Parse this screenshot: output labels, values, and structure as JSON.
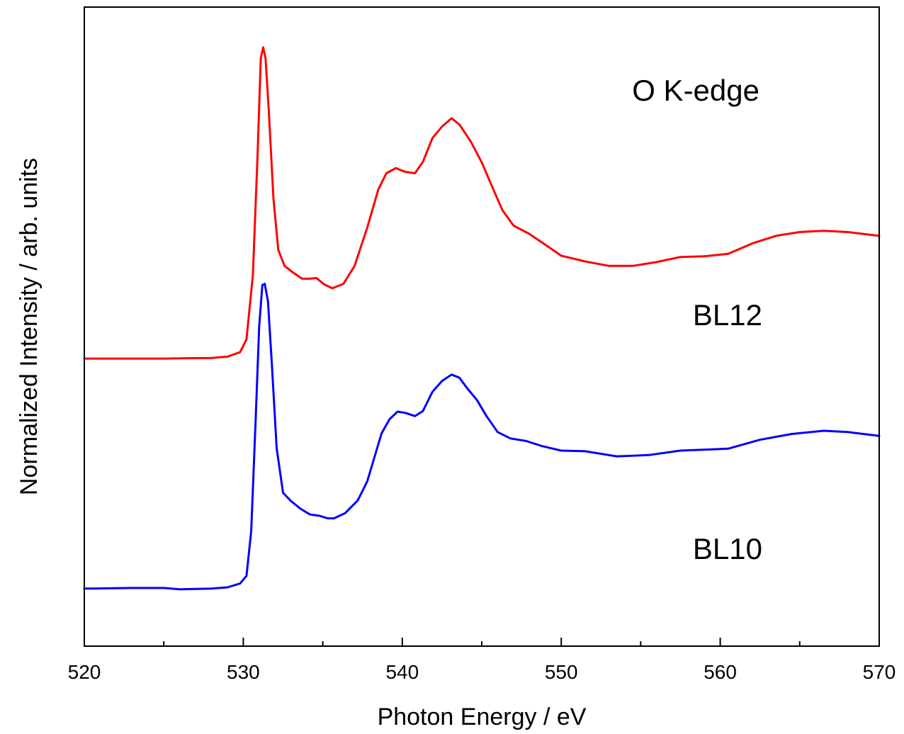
{
  "chart_data": {
    "type": "line",
    "title": "",
    "xlabel": "Photon Energy / eV",
    "ylabel": "Normalized Intensity / arb. units",
    "xlim": [
      520,
      570
    ],
    "ylim": [
      0,
      1
    ],
    "x_ticks": [
      520,
      530,
      540,
      550,
      560,
      570
    ],
    "x_tick_labels": [
      "520",
      "530",
      "540",
      "550",
      "560",
      "570"
    ],
    "y_ticks_shown": false,
    "grid": false,
    "legend": "none",
    "annotations": [
      "O K-edge",
      "BL12",
      "BL10"
    ],
    "series": [
      {
        "name": "BL12",
        "color": "#ff0000",
        "points": [
          [
            520,
            0.45
          ],
          [
            525,
            0.45
          ],
          [
            528,
            0.451
          ],
          [
            529,
            0.453
          ],
          [
            529.8,
            0.46
          ],
          [
            530.2,
            0.48
          ],
          [
            530.6,
            0.58
          ],
          [
            530.9,
            0.77
          ],
          [
            531.1,
            0.92
          ],
          [
            531.25,
            0.937
          ],
          [
            531.4,
            0.92
          ],
          [
            531.6,
            0.84
          ],
          [
            531.9,
            0.7
          ],
          [
            532.2,
            0.62
          ],
          [
            532.6,
            0.595
          ],
          [
            533.1,
            0.585
          ],
          [
            533.7,
            0.575
          ],
          [
            534.2,
            0.575
          ],
          [
            534.6,
            0.576
          ],
          [
            535.1,
            0.566
          ],
          [
            535.6,
            0.56
          ],
          [
            536.3,
            0.567
          ],
          [
            537.0,
            0.595
          ],
          [
            537.8,
            0.655
          ],
          [
            538.5,
            0.715
          ],
          [
            539.0,
            0.74
          ],
          [
            539.6,
            0.748
          ],
          [
            540.2,
            0.742
          ],
          [
            540.8,
            0.74
          ],
          [
            541.3,
            0.758
          ],
          [
            541.9,
            0.795
          ],
          [
            542.5,
            0.813
          ],
          [
            543.1,
            0.826
          ],
          [
            543.6,
            0.816
          ],
          [
            544.3,
            0.79
          ],
          [
            545.0,
            0.757
          ],
          [
            545.6,
            0.722
          ],
          [
            546.3,
            0.682
          ],
          [
            547.0,
            0.658
          ],
          [
            548.0,
            0.645
          ],
          [
            549.0,
            0.628
          ],
          [
            550.0,
            0.611
          ],
          [
            551.5,
            0.602
          ],
          [
            553.0,
            0.595
          ],
          [
            554.5,
            0.595
          ],
          [
            556.0,
            0.601
          ],
          [
            557.5,
            0.609
          ],
          [
            559.0,
            0.61
          ],
          [
            560.5,
            0.614
          ],
          [
            562.0,
            0.63
          ],
          [
            563.5,
            0.642
          ],
          [
            565.0,
            0.648
          ],
          [
            566.5,
            0.65
          ],
          [
            568.0,
            0.648
          ],
          [
            570,
            0.642
          ]
        ]
      },
      {
        "name": "BL10",
        "color": "#0000ff",
        "points": [
          [
            520,
            0.09
          ],
          [
            523,
            0.091
          ],
          [
            525,
            0.091
          ],
          [
            526,
            0.089
          ],
          [
            528,
            0.09
          ],
          [
            529,
            0.092
          ],
          [
            529.8,
            0.098
          ],
          [
            530.2,
            0.11
          ],
          [
            530.5,
            0.18
          ],
          [
            530.8,
            0.37
          ],
          [
            531.0,
            0.5
          ],
          [
            531.2,
            0.565
          ],
          [
            531.35,
            0.567
          ],
          [
            531.55,
            0.54
          ],
          [
            531.8,
            0.44
          ],
          [
            532.1,
            0.31
          ],
          [
            532.5,
            0.24
          ],
          [
            533.0,
            0.227
          ],
          [
            533.6,
            0.215
          ],
          [
            534.2,
            0.206
          ],
          [
            534.8,
            0.204
          ],
          [
            535.3,
            0.2
          ],
          [
            535.7,
            0.2
          ],
          [
            536.4,
            0.208
          ],
          [
            537.2,
            0.228
          ],
          [
            537.8,
            0.258
          ],
          [
            538.3,
            0.3
          ],
          [
            538.7,
            0.333
          ],
          [
            539.2,
            0.355
          ],
          [
            539.7,
            0.367
          ],
          [
            540.2,
            0.365
          ],
          [
            540.8,
            0.36
          ],
          [
            541.3,
            0.368
          ],
          [
            541.9,
            0.398
          ],
          [
            542.5,
            0.415
          ],
          [
            543.1,
            0.425
          ],
          [
            543.6,
            0.42
          ],
          [
            544.1,
            0.403
          ],
          [
            544.7,
            0.385
          ],
          [
            545.3,
            0.36
          ],
          [
            546.0,
            0.335
          ],
          [
            546.8,
            0.325
          ],
          [
            547.8,
            0.321
          ],
          [
            548.8,
            0.313
          ],
          [
            550.0,
            0.306
          ],
          [
            551.5,
            0.305
          ],
          [
            553.5,
            0.297
          ],
          [
            555.5,
            0.299
          ],
          [
            557.5,
            0.306
          ],
          [
            559.5,
            0.308
          ],
          [
            560.5,
            0.309
          ],
          [
            562.5,
            0.323
          ],
          [
            564.5,
            0.332
          ],
          [
            566.5,
            0.337
          ],
          [
            568.0,
            0.335
          ],
          [
            570,
            0.329
          ]
        ]
      }
    ]
  }
}
